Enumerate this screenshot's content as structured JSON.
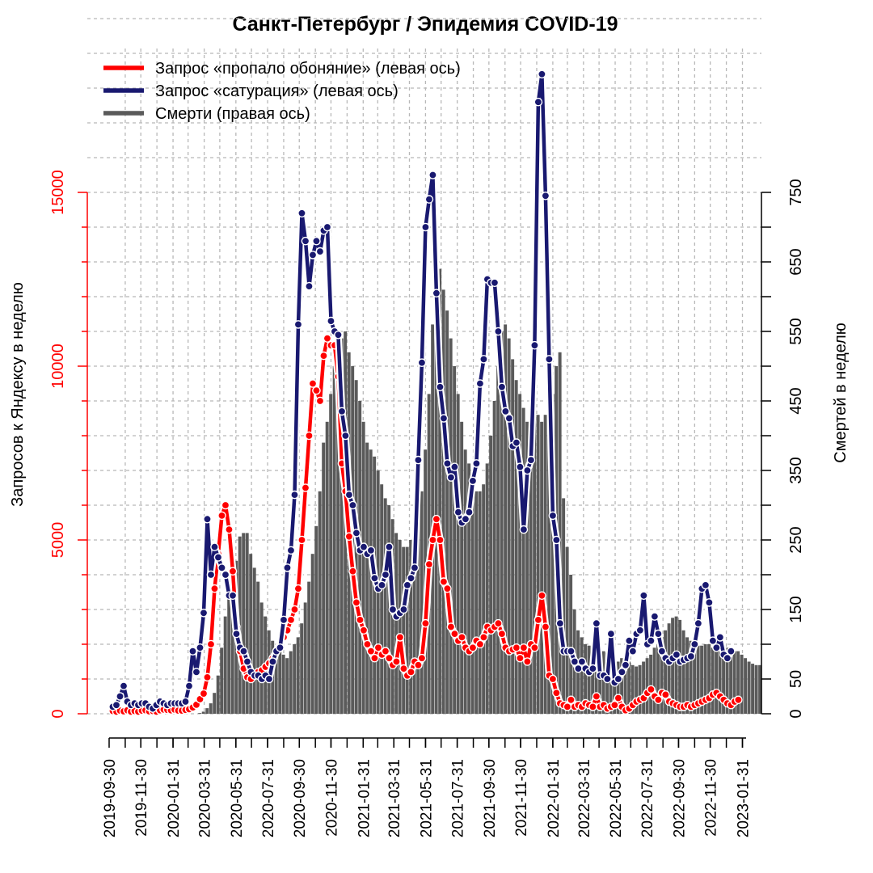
{
  "chart_data": {
    "type": "line",
    "title": "Санкт-Петербург / Эпидемия COVID-19",
    "ylabel": "Запросов к Яндексу в неделю",
    "ylabel_right": "Смертей в неделю",
    "ylim": [
      0,
      15000
    ],
    "ylim_right": [
      0,
      750
    ],
    "y_ticks": [
      "0",
      "5000",
      "10000",
      "15000"
    ],
    "y_ticks_right": [
      "0",
      "50",
      "150",
      "250",
      "350",
      "450",
      "550",
      "650",
      "750"
    ],
    "x_ticks": [
      "2019-09-30",
      "2019-11-30",
      "2020-01-31",
      "2020-03-31",
      "2020-05-31",
      "2020-07-31",
      "2020-09-30",
      "2020-11-30",
      "2021-01-31",
      "2021-03-31",
      "2021-05-31",
      "2021-07-31",
      "2021-09-30",
      "2021-11-30",
      "2022-01-31",
      "2022-03-31",
      "2022-05-31",
      "2022-07-31",
      "2022-09-30",
      "2022-11-30",
      "2023-01-31"
    ],
    "legend_position": "top-left",
    "grid": true,
    "colors": {
      "smell": "#ff0000",
      "saturation": "#191970",
      "deaths": "#5a5a5a",
      "left_axis": "#ff0000"
    },
    "series": [
      {
        "name": "Запрос «пропало обоняние» (левая ось)",
        "axis": "left",
        "start": "2019-10-07",
        "step_days": 7,
        "values": [
          80,
          60,
          90,
          70,
          100,
          60,
          80,
          60,
          90,
          100,
          70,
          80,
          60,
          100,
          120,
          110,
          100,
          120,
          90,
          90,
          110,
          130,
          180,
          260,
          420,
          580,
          1050,
          2000,
          3600,
          4600,
          5700,
          6000,
          5300,
          4100,
          2500,
          1800,
          1300,
          1050,
          1000,
          1100,
          1200,
          1250,
          1350,
          1450,
          1600,
          1800,
          2000,
          2200,
          2400,
          2700,
          3000,
          3600,
          5000,
          6500,
          8000,
          9500,
          9300,
          9000,
          10300,
          10800,
          10600,
          10600,
          9700,
          7200,
          6400,
          5100,
          4100,
          3200,
          2700,
          2400,
          2000,
          1800,
          1600,
          1900,
          1700,
          1800,
          1600,
          1400,
          1500,
          2200,
          1300,
          1100,
          1200,
          1500,
          1400,
          1600,
          2600,
          4300,
          5000,
          5600,
          5000,
          3800,
          3600,
          2500,
          2300,
          2100,
          2200,
          1900,
          1800,
          1900,
          2100,
          2000,
          2200,
          2500,
          2400,
          2500,
          2600,
          2300,
          1900,
          1800,
          1850,
          1900,
          1600,
          1900,
          1500,
          2000,
          1900,
          2700,
          3400,
          2500,
          1100,
          1000,
          600,
          300,
          250,
          200,
          400,
          200,
          250,
          200,
          300,
          250,
          200,
          500,
          200,
          250,
          150,
          200,
          250,
          450,
          200,
          100,
          150,
          250,
          350,
          400,
          450,
          600,
          700,
          500,
          400,
          600,
          550,
          350,
          300,
          250,
          200,
          200,
          250,
          200,
          250,
          300,
          350,
          400,
          450,
          550,
          600,
          500,
          400,
          300,
          250,
          350,
          400
        ]
      },
      {
        "name": "Запрос «сатурация» (левая ось)",
        "axis": "left",
        "start": "2019-10-07",
        "step_days": 7,
        "values": [
          200,
          250,
          500,
          800,
          350,
          250,
          300,
          250,
          300,
          300,
          200,
          150,
          250,
          350,
          300,
          250,
          300,
          300,
          300,
          300,
          350,
          800,
          1800,
          1200,
          1900,
          2900,
          5600,
          4000,
          4800,
          4500,
          4200,
          4000,
          3400,
          3400,
          2300,
          1900,
          1800,
          1500,
          1200,
          1100,
          1100,
          1000,
          1100,
          1000,
          1500,
          1800,
          1900,
          2700,
          4200,
          4700,
          6300,
          11200,
          14400,
          13600,
          12300,
          13200,
          13600,
          13300,
          13900,
          14000,
          11300,
          11000,
          10900,
          8700,
          8000,
          6300,
          6000,
          5200,
          4700,
          4800,
          4600,
          4700,
          3900,
          3600,
          3700,
          4000,
          4800,
          3000,
          2800,
          2900,
          3000,
          3700,
          3900,
          4200,
          7300,
          10100,
          14000,
          14800,
          15500,
          12100,
          9400,
          8500,
          7200,
          6800,
          7100,
          5800,
          5500,
          5600,
          5800,
          6700,
          7200,
          9500,
          10200,
          12500,
          12400,
          12400,
          11000,
          9400,
          8700,
          8500,
          7700,
          7800,
          7100,
          5300,
          7000,
          7300,
          10600,
          17600,
          18400,
          14900,
          10200,
          5700,
          5000,
          2600,
          1800,
          1800,
          1800,
          1500,
          1300,
          1500,
          1300,
          1200,
          1300,
          2600,
          1100,
          1100,
          1000,
          2300,
          900,
          1000,
          1200,
          1400,
          2100,
          1800,
          2300,
          2400,
          3400,
          2000,
          2100,
          2800,
          2300,
          1800,
          1600,
          1500,
          1600,
          1700,
          1500,
          1550,
          1600,
          1650,
          2000,
          2600,
          3600,
          3700,
          3200,
          2100,
          1900,
          2200,
          1700,
          1600,
          1800
        ]
      },
      {
        "name": "Смерти (правая ось)",
        "axis": "right",
        "start": "2019-10-07",
        "step_days": 7,
        "values": [
          0,
          0,
          0,
          0,
          0,
          0,
          0,
          0,
          0,
          0,
          0,
          0,
          0,
          0,
          0,
          0,
          0,
          0,
          0,
          0,
          0,
          0,
          0,
          0,
          1,
          3,
          8,
          15,
          30,
          55,
          95,
          140,
          180,
          210,
          220,
          255,
          260,
          260,
          230,
          210,
          190,
          160,
          140,
          120,
          105,
          95,
          90,
          85,
          80,
          90,
          100,
          110,
          130,
          160,
          190,
          230,
          270,
          320,
          390,
          420,
          460,
          500,
          520,
          540,
          550,
          520,
          500,
          480,
          450,
          420,
          390,
          380,
          370,
          350,
          330,
          310,
          300,
          280,
          260,
          250,
          240,
          240,
          250,
          260,
          280,
          320,
          380,
          460,
          560,
          620,
          640,
          610,
          580,
          540,
          500,
          460,
          420,
          380,
          360,
          340,
          320,
          320,
          330,
          360,
          400,
          450,
          500,
          550,
          560,
          540,
          510,
          480,
          460,
          440,
          420,
          420,
          440,
          430,
          420,
          430,
          450,
          460,
          500,
          520,
          310,
          240,
          200,
          150,
          120,
          110,
          100,
          98,
          98,
          100,
          95,
          90,
          88,
          85,
          80,
          75,
          80,
          80,
          75,
          70,
          68,
          70,
          75,
          80,
          85,
          95,
          100,
          110,
          120,
          130,
          138,
          140,
          135,
          120,
          110,
          105,
          100,
          98,
          98,
          100,
          100,
          95,
          95,
          95,
          95,
          95,
          95,
          90,
          90,
          85,
          80,
          75,
          72,
          70,
          70
        ]
      }
    ]
  }
}
